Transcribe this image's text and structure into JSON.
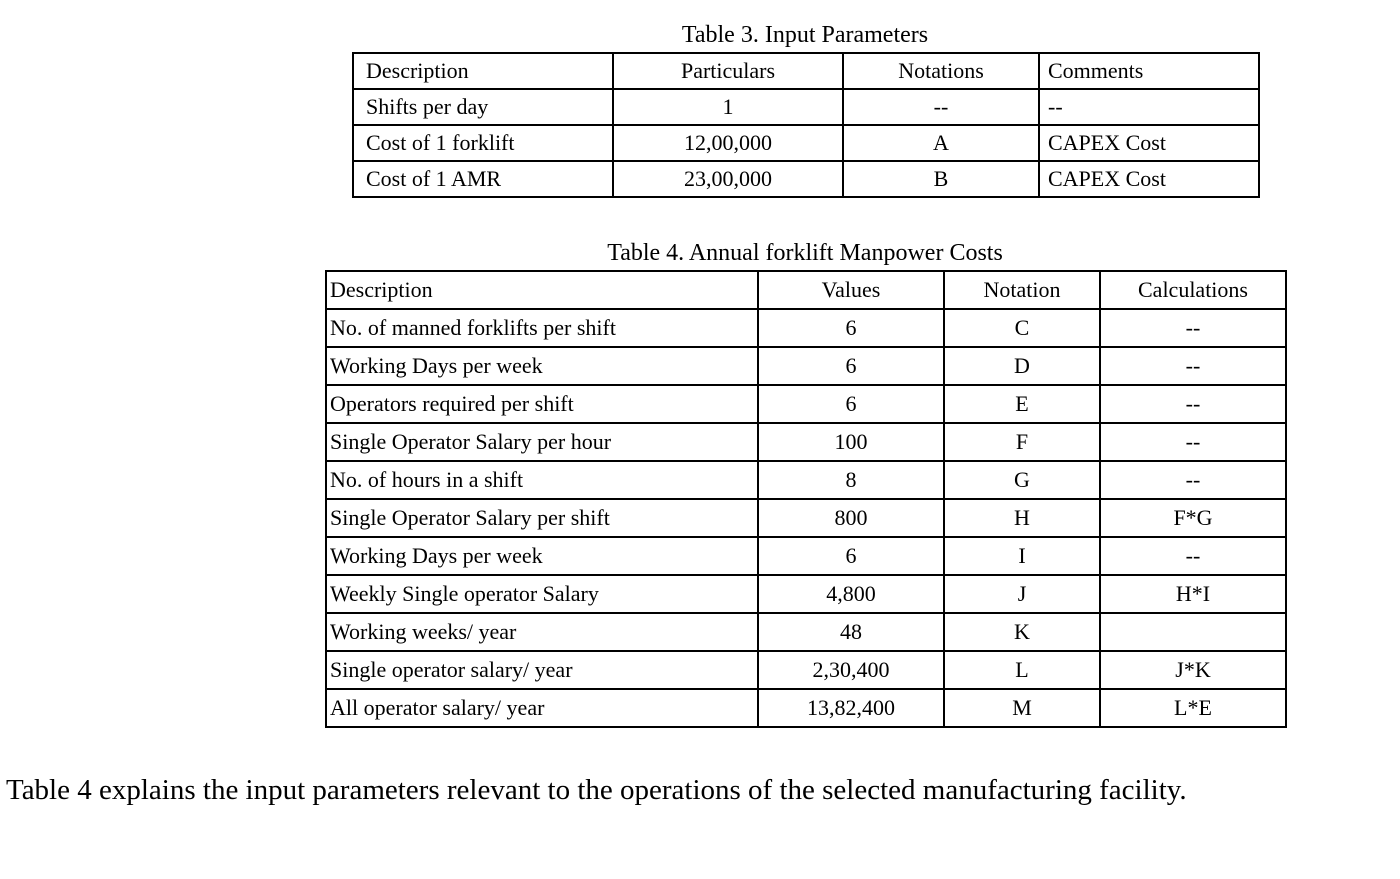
{
  "page": {
    "background_color": "#ffffff",
    "text_color": "#000000"
  },
  "table3": {
    "title": "Table 3. Input Parameters",
    "headers": [
      "Description",
      "Particulars",
      "Notations",
      "Comments"
    ],
    "rows": [
      [
        "Shifts per day",
        "1",
        "--",
        "--"
      ],
      [
        "Cost of 1 forklift",
        "12,00,000",
        "A",
        "CAPEX Cost"
      ],
      [
        "Cost of 1 AMR",
        "23,00,000",
        "B",
        "CAPEX Cost"
      ]
    ]
  },
  "table4": {
    "title": "Table 4. Annual forklift Manpower Costs",
    "headers": [
      "Description",
      "Values",
      "Notation",
      "Calculations"
    ],
    "rows": [
      [
        "No. of manned forklifts per shift",
        "6",
        "C",
        "--"
      ],
      [
        "Working Days per week",
        "6",
        "D",
        "--"
      ],
      [
        "Operators required per shift",
        "6",
        "E",
        "--"
      ],
      [
        "Single Operator Salary per hour",
        "100",
        "F",
        "--"
      ],
      [
        "No. of hours in a shift",
        "8",
        "G",
        "--"
      ],
      [
        "Single Operator Salary per shift",
        "800",
        "H",
        "F*G"
      ],
      [
        "Working Days per week",
        "6",
        "I",
        "--"
      ],
      [
        "Weekly Single operator Salary",
        "4,800",
        "J",
        "H*I"
      ],
      [
        "Working weeks/ year",
        "48",
        "K",
        ""
      ],
      [
        "Single operator salary/ year",
        "2,30,400",
        "L",
        "J*K"
      ],
      [
        "All operator salary/ year",
        "13,82,400",
        "M",
        "L*E"
      ]
    ]
  },
  "caption": "Table 4 explains the input parameters relevant to the operations of the selected manufacturing facility."
}
